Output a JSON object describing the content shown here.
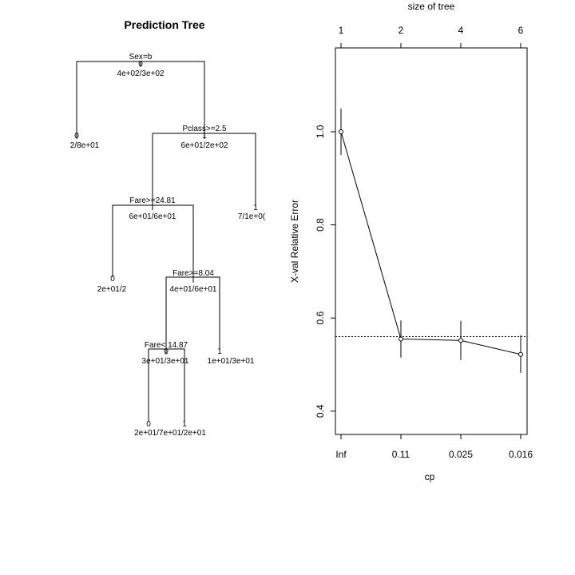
{
  "chart_data": [
    {
      "type": "tree",
      "title": "Prediction Tree",
      "nodes": [
        {
          "id": "root",
          "split": "Sex=b",
          "counts": "4e+02/3e+02",
          "yval": "0"
        },
        {
          "id": "n2",
          "counts": "2/8e+01",
          "yval": "0"
        },
        {
          "id": "n3",
          "split": "Pclass>=2.5",
          "counts": "6e+01/2e+02",
          "yval": "1"
        },
        {
          "id": "n6",
          "split": "Fare>=24.81",
          "counts": "6e+01/6e+01",
          "yval": ""
        },
        {
          "id": "n7",
          "counts": "7/1e+0(",
          "yval": "1"
        },
        {
          "id": "n12",
          "counts": "2e+01/2",
          "yval": "0"
        },
        {
          "id": "n13",
          "split": "Fare>=8.04",
          "counts": "4e+01/6e+01",
          "yval": ""
        },
        {
          "id": "n26",
          "split": "Fare< 14.87",
          "counts": "3e+01/3e+01",
          "yval": "0"
        },
        {
          "id": "n27",
          "counts": "1e+01/3e+01",
          "yval": "1"
        },
        {
          "id": "n52",
          "counts": "2e+01/7e+01/2e+01",
          "yval": "0"
        },
        {
          "id": "n53",
          "counts": "",
          "yval": "1"
        }
      ]
    },
    {
      "type": "line",
      "title": "",
      "xlabel": "cp",
      "ylabel": "X-val Relative Error",
      "toplabel": "size of tree",
      "x_categories": [
        "Inf",
        "0.11",
        "0.025",
        "0.016"
      ],
      "top_ticks": [
        "1",
        "2",
        "4",
        "6"
      ],
      "y_ticks": [
        "0.4",
        "0.6",
        "0.8",
        "1.0"
      ],
      "ylim": [
        0.35,
        1.18
      ],
      "reference_line": 0.56,
      "series": [
        {
          "values": [
            1.0,
            0.555,
            0.552,
            0.522
          ],
          "error_low": [
            0.95,
            0.515,
            0.51,
            0.482
          ],
          "error_high": [
            1.05,
            0.595,
            0.594,
            0.563
          ]
        }
      ]
    }
  ]
}
